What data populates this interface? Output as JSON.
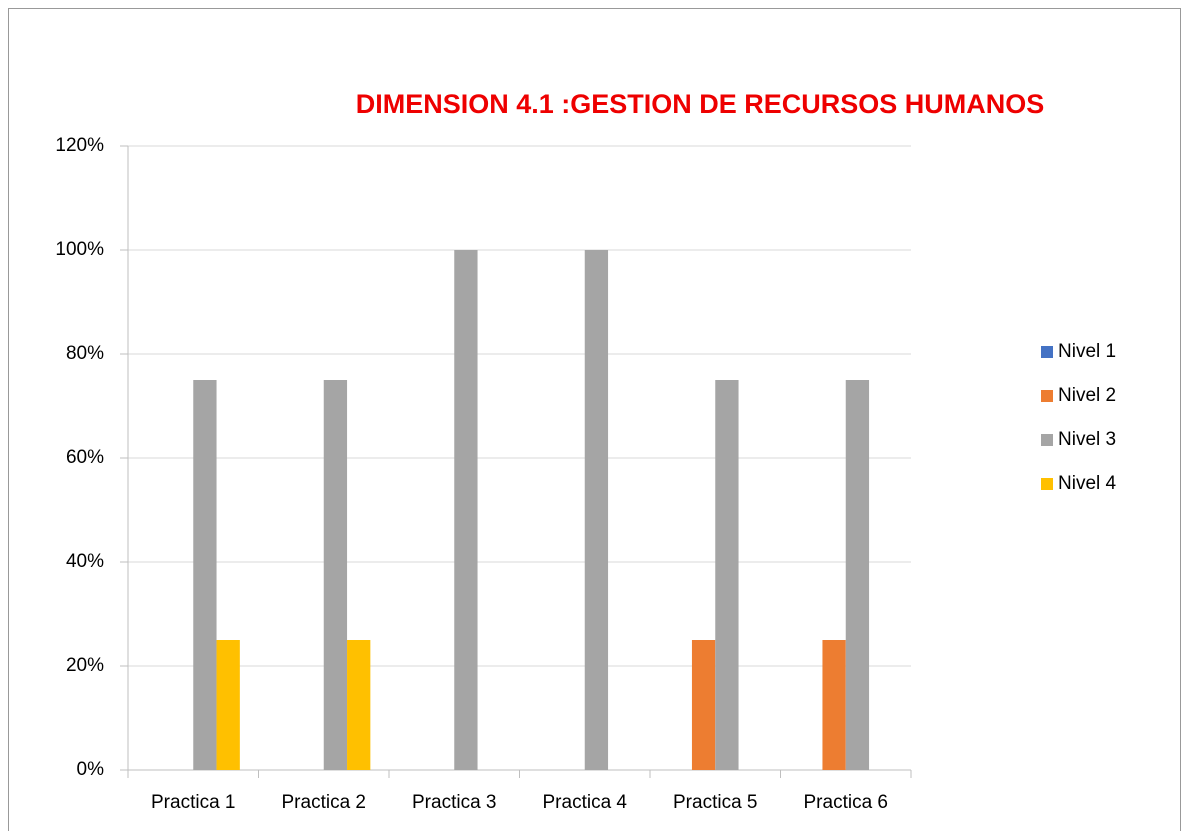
{
  "chart_data": {
    "type": "bar",
    "title": "DIMENSION  4.1 :GESTION DE RECURSOS HUMANOS",
    "categories": [
      "Practica 1",
      "Practica 2",
      "Practica 3",
      "Practica 4",
      "Practica 5",
      "Practica 6"
    ],
    "series": [
      {
        "name": "Nivel 1",
        "color": "#4472c4",
        "values": [
          0,
          0,
          0,
          0,
          0,
          0
        ]
      },
      {
        "name": "Nivel 2",
        "color": "#ed7d31",
        "values": [
          0,
          0,
          0,
          0,
          25,
          25
        ]
      },
      {
        "name": "Nivel 3",
        "color": "#a5a5a5",
        "values": [
          75,
          75,
          100,
          100,
          75,
          75
        ]
      },
      {
        "name": "Nivel 4",
        "color": "#ffc000",
        "values": [
          25,
          25,
          0,
          0,
          0,
          0
        ]
      }
    ],
    "ylim": [
      0,
      120
    ],
    "yticks": [
      {
        "value": 0,
        "label": "0%"
      },
      {
        "value": 20,
        "label": "20%"
      },
      {
        "value": 40,
        "label": "40%"
      },
      {
        "value": 60,
        "label": "60%"
      },
      {
        "value": 80,
        "label": "80%"
      },
      {
        "value": 100,
        "label": "100%"
      },
      {
        "value": 120,
        "label": "120%"
      }
    ],
    "grid": true,
    "legend": "right"
  }
}
